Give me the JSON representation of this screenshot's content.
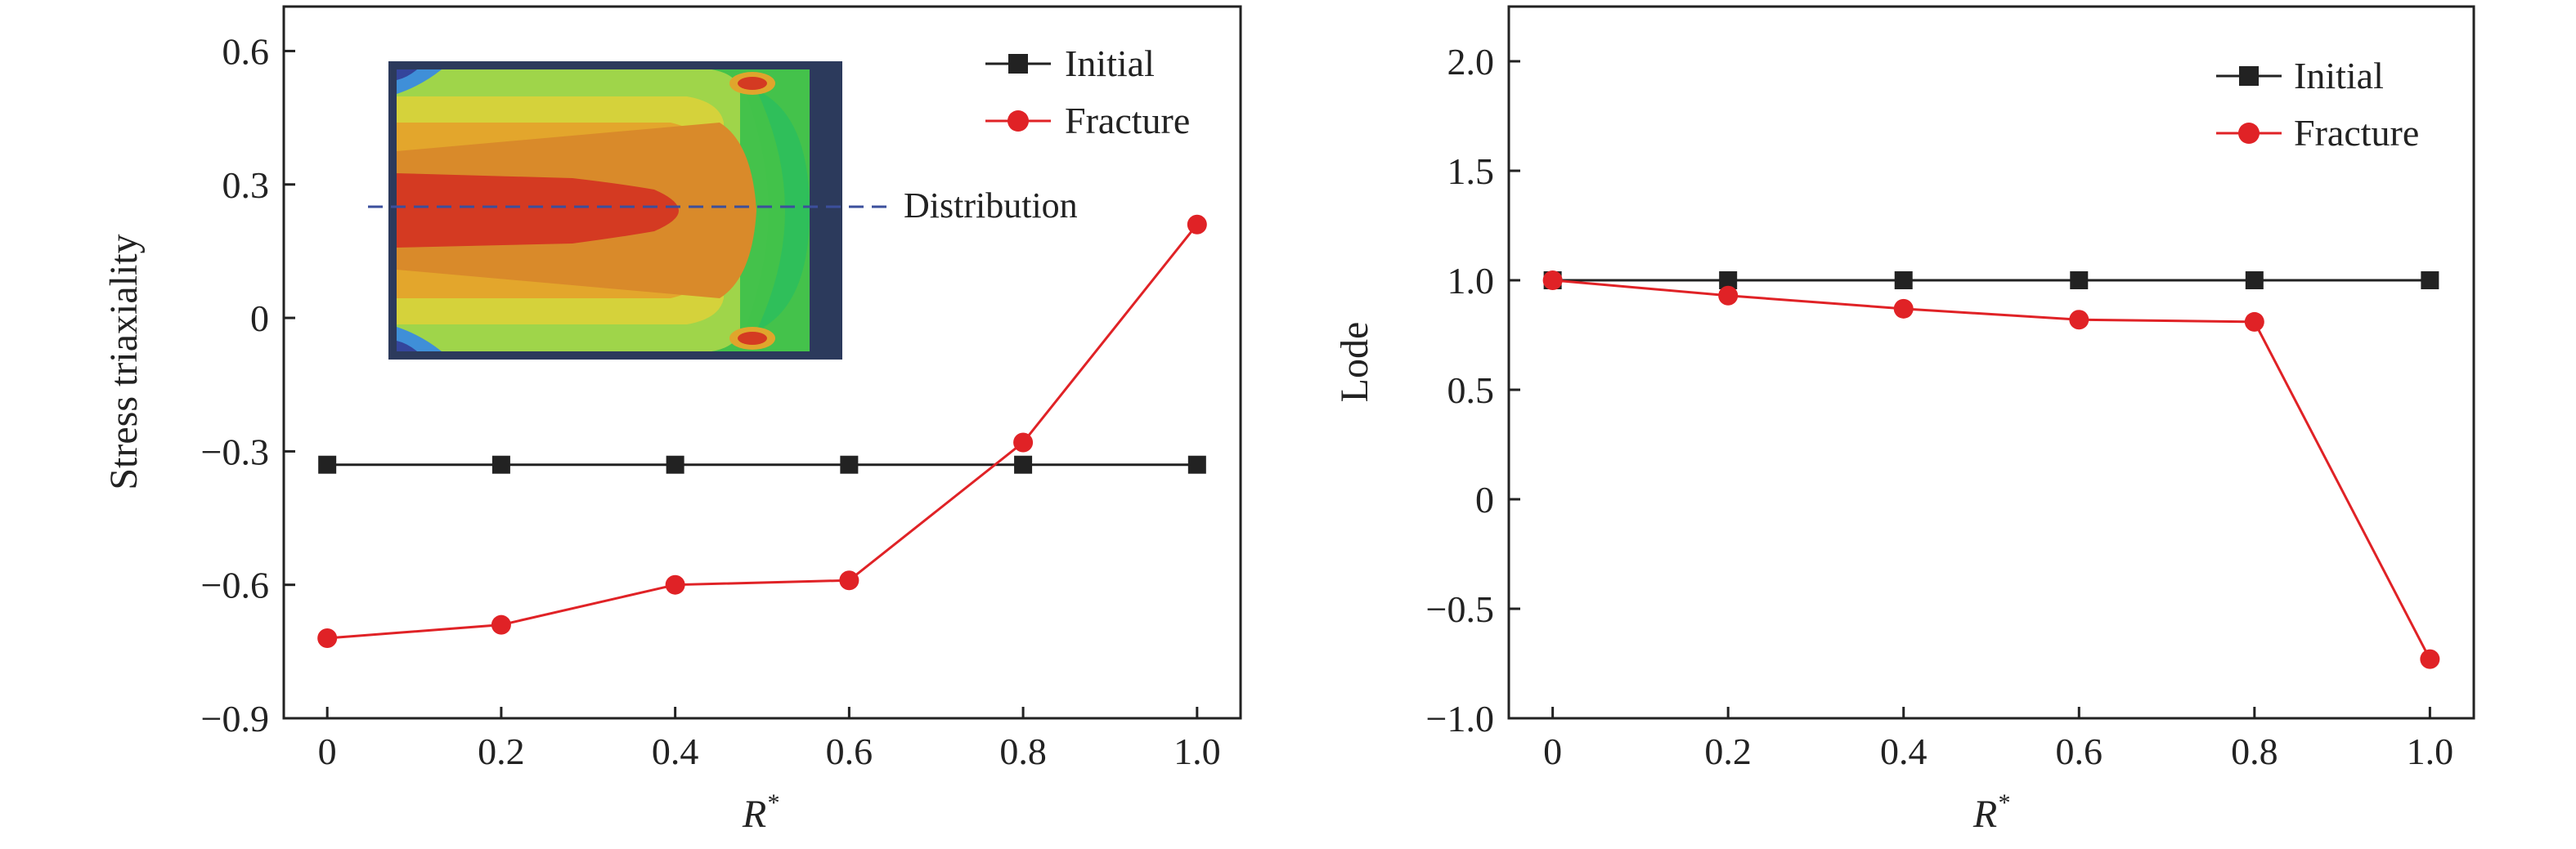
{
  "chart_data": [
    {
      "type": "line",
      "ylabel": "Stress triaxiality",
      "xlabel": "R",
      "xlabel_superscript": "*",
      "x": [
        0,
        0.2,
        0.4,
        0.6,
        0.8,
        1.0
      ],
      "xticks": [
        "0",
        "0.2",
        "0.4",
        "0.6",
        "0.8",
        "1.0"
      ],
      "xlim": [
        -0.05,
        1.05
      ],
      "yticks": [
        "0.6",
        "0.3",
        "0",
        "−0.3",
        "−0.6",
        "−0.9"
      ],
      "ytick_values": [
        0.6,
        0.3,
        0,
        -0.3,
        -0.6,
        -0.9
      ],
      "ylim": [
        -0.9,
        0.7
      ],
      "grid": false,
      "legend_position": "top-right",
      "series": [
        {
          "name": "Initial",
          "color": "#222222",
          "marker": "square",
          "values": [
            -0.33,
            -0.33,
            -0.33,
            -0.33,
            -0.33,
            -0.33
          ]
        },
        {
          "name": "Fracture",
          "color": "#e02226",
          "marker": "circle",
          "values": [
            -0.72,
            -0.69,
            -0.6,
            -0.59,
            -0.28,
            0.21
          ]
        }
      ],
      "inset": {
        "kind": "contour-image",
        "annotation": "Distribution",
        "colors": [
          "#34459c",
          "#3f8fd8",
          "#2ec59a",
          "#42c24a",
          "#a2d64a",
          "#d6d33a",
          "#e0a52c",
          "#d88a2a",
          "#d43a22"
        ]
      }
    },
    {
      "type": "line",
      "ylabel": "Lode",
      "xlabel": "R",
      "xlabel_superscript": "*",
      "x": [
        0,
        0.2,
        0.4,
        0.6,
        0.8,
        1.0
      ],
      "xticks": [
        "0",
        "0.2",
        "0.4",
        "0.6",
        "0.8",
        "1.0"
      ],
      "xlim": [
        -0.05,
        1.05
      ],
      "yticks": [
        "2.0",
        "1.5",
        "1.0",
        "0.5",
        "0",
        "−0.5",
        "−1.0"
      ],
      "ytick_values": [
        2.0,
        1.5,
        1.0,
        0.5,
        0,
        -0.5,
        -1.0
      ],
      "ylim": [
        -1.0,
        2.25
      ],
      "grid": false,
      "legend_position": "top-right",
      "series": [
        {
          "name": "Initial",
          "color": "#222222",
          "marker": "square",
          "values": [
            1.0,
            1.0,
            1.0,
            1.0,
            1.0,
            1.0
          ]
        },
        {
          "name": "Fracture",
          "color": "#e02226",
          "marker": "circle",
          "values": [
            1.0,
            0.93,
            0.87,
            0.82,
            0.81,
            -0.73
          ]
        }
      ]
    }
  ]
}
